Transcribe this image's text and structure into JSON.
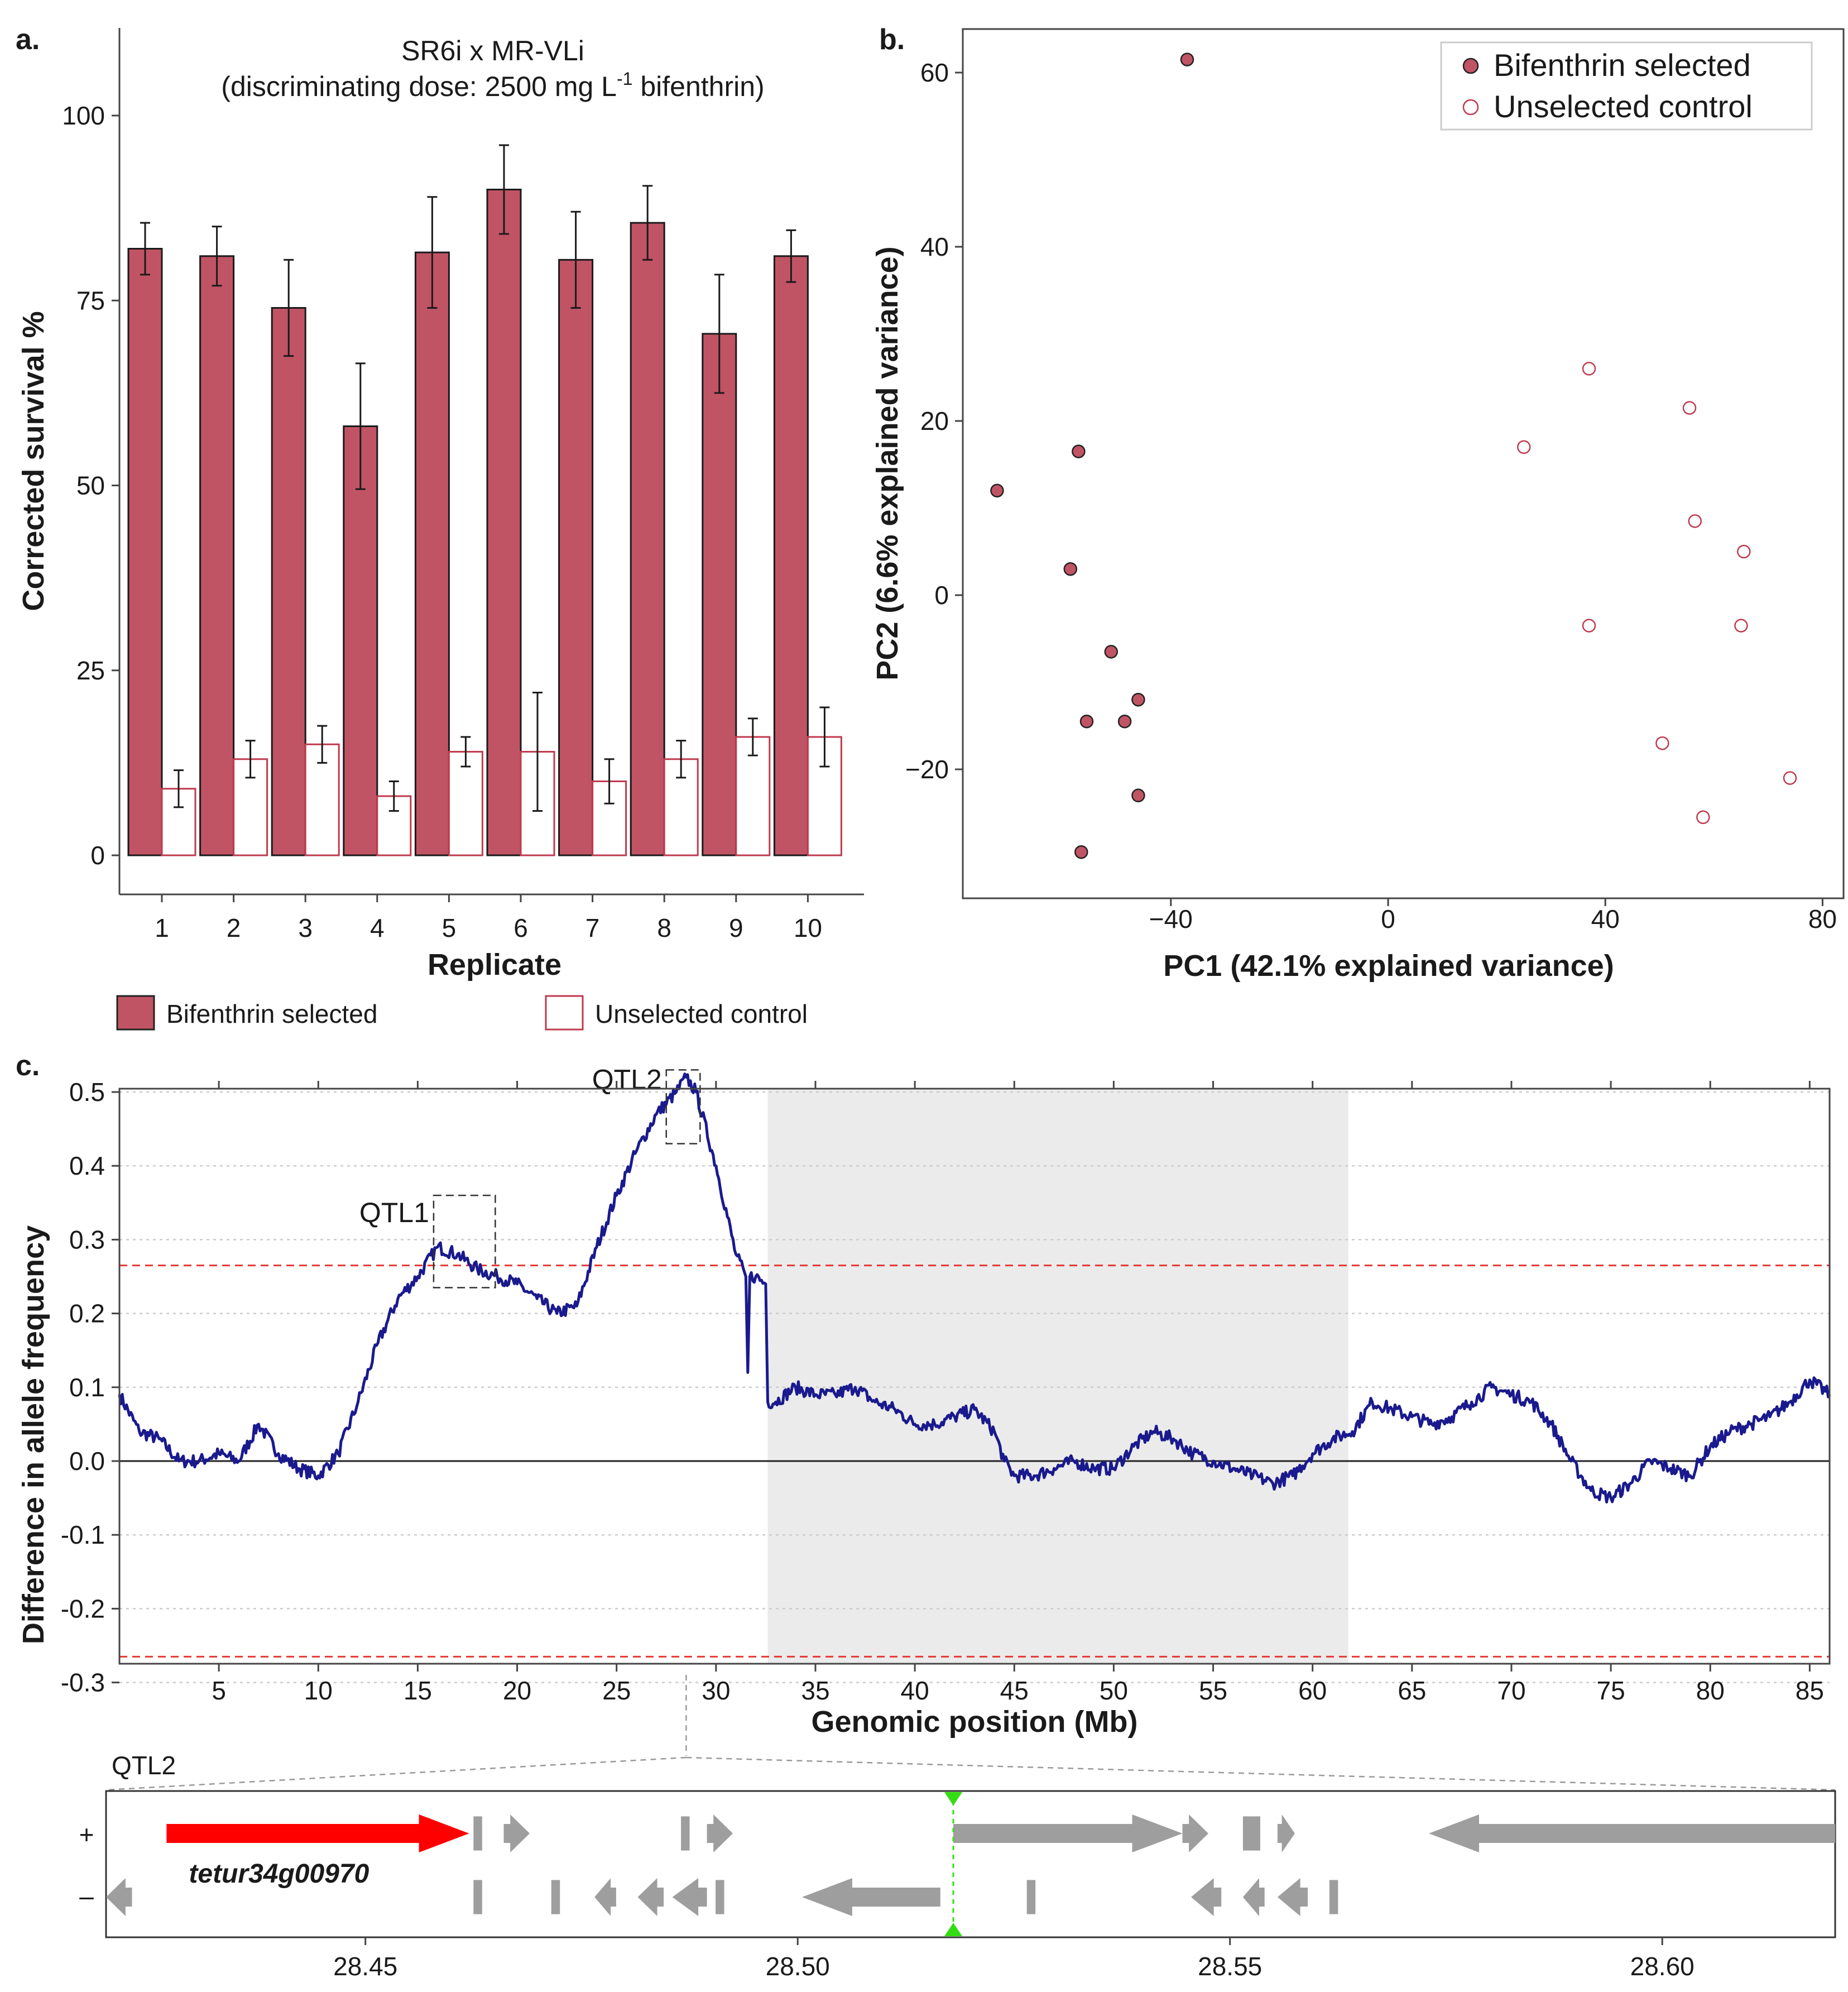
{
  "colors": {
    "selected_fill": "#c05464",
    "control_edge": "#c03a4e",
    "trace": "#1a1a8e",
    "threshold": "#e53935",
    "highlight_region": "#ebebeb",
    "gene_red": "#ff0000",
    "gene_grey": "#9e9e9e",
    "marker_green": "#33dd11"
  },
  "chart_data": [
    {
      "id": "a",
      "panel_label": "a.",
      "type": "bar",
      "title_line1": "SR6i x MR-VLi",
      "title_line2_prefix": "(discriminating dose: 2500 mg L",
      "title_line2_sup": "-1",
      "title_line2_suffix": " bifenthrin)",
      "xlabel": "Replicate",
      "ylabel": "Corrected survival %",
      "ylim": [
        0,
        100
      ],
      "yticks": [
        0,
        25,
        50,
        75,
        100
      ],
      "categories": [
        "1",
        "2",
        "3",
        "4",
        "5",
        "6",
        "7",
        "8",
        "9",
        "10"
      ],
      "series": [
        {
          "name": "Bifenthrin selected",
          "values": [
            82,
            81,
            74,
            58,
            81.5,
            90,
            80.5,
            85.5,
            70.5,
            81
          ],
          "err": [
            3.5,
            4,
            6.5,
            8.5,
            7.5,
            6,
            6.5,
            5,
            8,
            3.5
          ]
        },
        {
          "name": "Unselected control",
          "values": [
            9,
            13,
            15,
            8,
            14,
            14,
            10,
            13,
            16,
            16
          ],
          "err": [
            2.5,
            2.5,
            2.5,
            2,
            2,
            8,
            3,
            2.5,
            2.5,
            4
          ]
        }
      ],
      "legend": [
        "Bifenthrin selected",
        "Unselected control"
      ]
    },
    {
      "id": "b",
      "panel_label": "b.",
      "type": "scatter",
      "xlabel": "PC1 (42.1% explained variance)",
      "ylabel": "PC2 (6.6% explained variance)",
      "xticks": [
        -40,
        0,
        40,
        80
      ],
      "yticks": [
        -20,
        0,
        20,
        40,
        60
      ],
      "xlim": [
        -78,
        82
      ],
      "ylim": [
        -34,
        66
      ],
      "series": [
        {
          "name": "Bifenthrin selected",
          "x": [
            -37,
            -72,
            -57,
            -58.5,
            -51,
            -46,
            -48.5,
            -55.5,
            -46,
            -56.5
          ],
          "y": [
            61.5,
            12,
            16.5,
            3,
            -6.5,
            -12,
            -14.5,
            -14.5,
            -23,
            -29.5
          ]
        },
        {
          "name": "Unselected control",
          "x": [
            37,
            25,
            55.5,
            56.5,
            65.5,
            37,
            65,
            50.5,
            58,
            74
          ],
          "y": [
            26,
            17,
            21.5,
            8.5,
            5,
            -3.5,
            -3.5,
            -17,
            -25.5,
            -21
          ]
        }
      ]
    },
    {
      "id": "c",
      "panel_label": "c.",
      "type": "line",
      "xlabel": "Genomic position (Mb)",
      "ylabel": "Difference in allele frequency",
      "xlim": [
        0,
        86
      ],
      "ylim": [
        -0.3,
        0.56
      ],
      "xticks": [
        5,
        10,
        15,
        20,
        25,
        30,
        35,
        40,
        45,
        50,
        55,
        60,
        65,
        70,
        75,
        80,
        85
      ],
      "yticks": [
        "-0.3",
        "-0.2",
        "-0.1",
        "0.0",
        "0.1",
        "0.2",
        "0.3",
        "0.4",
        "0.5"
      ],
      "threshold": 0.265,
      "shaded_region": [
        32.6,
        61.8
      ],
      "qtl_boxes": [
        {
          "label": "QTL1",
          "x": [
            15.8,
            18.9
          ],
          "y": [
            0.235,
            0.36
          ]
        },
        {
          "label": "QTL2",
          "x": [
            27.5,
            29.2
          ],
          "y": [
            0.43,
            0.53
          ]
        }
      ],
      "x": [
        0,
        1,
        2,
        3,
        4,
        5,
        6,
        7,
        8,
        9,
        10,
        11,
        12,
        13,
        14,
        15,
        16,
        17,
        18,
        19,
        20,
        21,
        22,
        23,
        24,
        25,
        26,
        27,
        28,
        28.5,
        29,
        30,
        31,
        31.5,
        31.6,
        31.7,
        32,
        32.5,
        32.6,
        33,
        34,
        35,
        36,
        37,
        38,
        39,
        40,
        41,
        42,
        43,
        44,
        44.5,
        45,
        46,
        47,
        48,
        49,
        50,
        51,
        52,
        53,
        54,
        55,
        56,
        57,
        58,
        59,
        60,
        61,
        62,
        63,
        64,
        65,
        66,
        67,
        68,
        69,
        70,
        71,
        72,
        73,
        74,
        75,
        76,
        77,
        78,
        79,
        80,
        81,
        82,
        83,
        84,
        85,
        86
      ],
      "y": [
        0.09,
        0.04,
        0.03,
        0.0,
        0.0,
        0.01,
        0.0,
        0.05,
        0.01,
        -0.01,
        -0.02,
        0.01,
        0.08,
        0.16,
        0.22,
        0.25,
        0.29,
        0.28,
        0.26,
        0.25,
        0.24,
        0.22,
        0.2,
        0.21,
        0.29,
        0.36,
        0.42,
        0.47,
        0.5,
        0.52,
        0.5,
        0.4,
        0.28,
        0.25,
        0.12,
        0.25,
        0.25,
        0.24,
        0.08,
        0.08,
        0.1,
        0.09,
        0.09,
        0.1,
        0.08,
        0.07,
        0.05,
        0.05,
        0.06,
        0.07,
        0.04,
        0.0,
        -0.02,
        -0.02,
        -0.01,
        0.0,
        -0.01,
        -0.01,
        0.02,
        0.04,
        0.03,
        0.01,
        0.0,
        -0.01,
        -0.02,
        -0.03,
        -0.02,
        0.01,
        0.03,
        0.04,
        0.08,
        0.07,
        0.06,
        0.05,
        0.06,
        0.08,
        0.1,
        0.09,
        0.08,
        0.05,
        0.0,
        -0.04,
        -0.05,
        -0.03,
        0.0,
        -0.01,
        -0.02,
        0.02,
        0.04,
        0.05,
        0.06,
        0.08,
        0.11,
        0.09
      ]
    },
    {
      "id": "c-zoom",
      "type": "gene_track",
      "label": "QTL2",
      "strand_labels": [
        "+",
        "–"
      ],
      "xlim": [
        28.42,
        28.62
      ],
      "xticks": [
        "28.45",
        "28.50",
        "28.55",
        "28.60"
      ],
      "marker": 28.518,
      "highlight_gene": "tetur34g00970",
      "genes_plus": [
        {
          "start": 28.427,
          "end": 28.462,
          "arrow": true,
          "dir": 1,
          "highlight": true
        },
        {
          "start": 28.4625,
          "end": 28.4635
        },
        {
          "start": 28.466,
          "end": 28.469,
          "arrow": true,
          "dir": 1
        },
        {
          "start": 28.4865,
          "end": 28.4875
        },
        {
          "start": 28.4895,
          "end": 28.4925,
          "arrow": true,
          "dir": 1
        },
        {
          "start": 28.518,
          "end": 28.5445,
          "arrow": true,
          "dir": 1
        },
        {
          "start": 28.5445,
          "end": 28.5475,
          "arrow": true,
          "dir": 1
        },
        {
          "start": 28.5515,
          "end": 28.5535
        },
        {
          "start": 28.5555,
          "end": 28.5575,
          "arrow": true,
          "dir": 1
        },
        {
          "start": 28.573,
          "end": 28.62,
          "arrow": true,
          "dir": -1
        }
      ],
      "genes_minus": [
        {
          "start": 28.42,
          "end": 28.423,
          "arrow": true,
          "dir": -1
        },
        {
          "start": 28.4625,
          "end": 28.4635
        },
        {
          "start": 28.4715,
          "end": 28.4725
        },
        {
          "start": 28.4765,
          "end": 28.479,
          "arrow": true,
          "dir": -1
        },
        {
          "start": 28.4815,
          "end": 28.4845,
          "arrow": true,
          "dir": -1
        },
        {
          "start": 28.4855,
          "end": 28.4895,
          "arrow": true,
          "dir": -1
        },
        {
          "start": 28.4905,
          "end": 28.4915
        },
        {
          "start": 28.5005,
          "end": 28.5165,
          "arrow": true,
          "dir": -1
        },
        {
          "start": 28.5265,
          "end": 28.5275
        },
        {
          "start": 28.5455,
          "end": 28.549,
          "arrow": true,
          "dir": -1
        },
        {
          "start": 28.5515,
          "end": 28.554,
          "arrow": true,
          "dir": -1
        },
        {
          "start": 28.5555,
          "end": 28.559,
          "arrow": true,
          "dir": -1
        },
        {
          "start": 28.5615,
          "end": 28.5625
        }
      ]
    }
  ]
}
